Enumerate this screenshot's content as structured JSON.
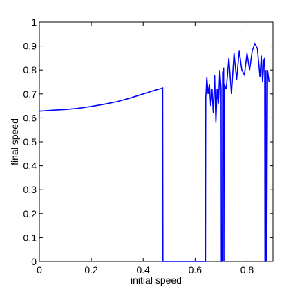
{
  "chart_data": {
    "type": "line",
    "x_label": "initial speed",
    "y_label": "final speed",
    "x": [
      0,
      0.05,
      0.1,
      0.15,
      0.2,
      0.25,
      0.3,
      0.35,
      0.4,
      0.45,
      0.47,
      0.475,
      0.476,
      0.64,
      0.641,
      0.645,
      0.65,
      0.655,
      0.66,
      0.665,
      0.67,
      0.675,
      0.68,
      0.685,
      0.69,
      0.695,
      0.7,
      0.701,
      0.705,
      0.706,
      0.71,
      0.711,
      0.712,
      0.72,
      0.73,
      0.74,
      0.75,
      0.76,
      0.77,
      0.78,
      0.79,
      0.8,
      0.81,
      0.82,
      0.83,
      0.84,
      0.85,
      0.855,
      0.86,
      0.865,
      0.868,
      0.869,
      0.872,
      0.873,
      0.876,
      0.879,
      0.885
    ],
    "values": [
      0.628,
      0.632,
      0.635,
      0.64,
      0.648,
      0.657,
      0.668,
      0.683,
      0.7,
      0.717,
      0.723,
      0.725,
      0,
      0,
      0.68,
      0.77,
      0.7,
      0.74,
      0.65,
      0.72,
      0.62,
      0.78,
      0.58,
      0.72,
      0.66,
      0.8,
      0.72,
      0,
      0,
      0.79,
      0.81,
      0,
      0.74,
      0.72,
      0.85,
      0.7,
      0.87,
      0.76,
      0.88,
      0.8,
      0.78,
      0.87,
      0.8,
      0.88,
      0.91,
      0.89,
      0.77,
      0.86,
      0.75,
      0.84,
      0.85,
      0,
      0,
      0.8,
      0,
      0.8,
      0.75
    ],
    "color": "#0000ff",
    "xlim": [
      0,
      0.9
    ],
    "xticks": [
      0,
      0.2,
      0.4,
      0.6,
      0.8
    ],
    "ylim": [
      0,
      1
    ],
    "yticks": [
      0,
      0.1,
      0.2,
      0.3,
      0.4,
      0.5,
      0.6,
      0.7,
      0.8,
      0.9,
      1
    ],
    "grid": false
  }
}
